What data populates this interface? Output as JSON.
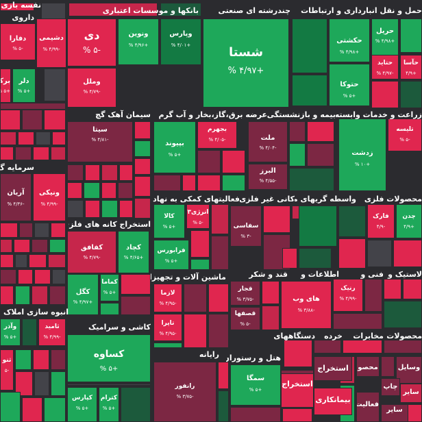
{
  "colors": {
    "strong_green": "#1ea85a",
    "green": "#137a43",
    "dark_green": "#1c5a3c",
    "strong_red": "#e0264f",
    "red": "#c6264b",
    "dark_red": "#7c2743",
    "neutral": "#434349",
    "background": "#2b2b2f"
  },
  "sectors": [
    {
      "name": "حمل و نقل انبارداری و ارتباطات"
    },
    {
      "name": "چندرشته ای صنعتی"
    },
    {
      "name": "بانکها و موسسات اعتباری"
    },
    {
      "name": "نفسه بازی"
    },
    {
      "name": "داروی"
    },
    {
      "name": "زراعت و خدمات وابسته"
    },
    {
      "name": "بیمه و بازنشستگی"
    },
    {
      "name": "عرضه برق،گاز،بخار و آب گرم"
    },
    {
      "name": "سیمان آهک گچ"
    },
    {
      "name": "سرمایه گ"
    },
    {
      "name": "محصولات فلزی"
    },
    {
      "name": "واسطه گریهای مالی"
    },
    {
      "name": "کانی غیر فلزی"
    },
    {
      "name": "فعالیتهای کمکی به نهاد"
    },
    {
      "name": "استخراج کانه های فلزی"
    },
    {
      "name": "لاستیک و"
    },
    {
      "name": "فنی و"
    },
    {
      "name": "اطلاعات و"
    },
    {
      "name": "قند و شکر"
    },
    {
      "name": "ماشین آلات و تجهیزات"
    },
    {
      "name": "انبوه سازی املاک"
    },
    {
      "name": "محصولات"
    },
    {
      "name": "مخابرات"
    },
    {
      "name": "خرده"
    },
    {
      "name": "دستگاههای"
    },
    {
      "name": "هتل و رستوران"
    },
    {
      "name": "رایانه"
    },
    {
      "name": "کاشی و سرامیک"
    }
  ],
  "tiles": [
    {
      "symbol": "شستا",
      "change": "+۴/۹۷ %"
    },
    {
      "symbol": "دی",
      "change": "-۵ %"
    },
    {
      "symbol": "ونوین",
      "change": "+۴/۹۶ %"
    },
    {
      "symbol": "وپارس",
      "change": "+۴/۰۱ %"
    },
    {
      "symbol": "وملل",
      "change": "-۴/۷۹ %"
    },
    {
      "symbol": "دشیمی",
      "change": "-۴/۹۹ %"
    },
    {
      "symbol": "دفارا",
      "change": "-۵ %"
    },
    {
      "symbol": "دلر",
      "change": "+۵ %"
    },
    {
      "symbol": "برکت",
      "change": "+۵ %"
    },
    {
      "symbol": "حکشتی",
      "change": "+۴/۹۸ %"
    },
    {
      "symbol": "حریل",
      "change": "+۴/۹۸ %"
    },
    {
      "symbol": "حتوکا",
      "change": "+۵ %"
    },
    {
      "symbol": "حتاید",
      "change": "-۴/۹۷ %"
    },
    {
      "symbol": "حآسا",
      "change": "+۴/۹"
    },
    {
      "symbol": "زدشت",
      "change": "+۱۰ %"
    },
    {
      "symbol": "تلیسه",
      "change": "-۵ %"
    },
    {
      "symbol": "ملت",
      "change": "-۴/۰۴ %"
    },
    {
      "symbol": "البرز",
      "change": "-۴/۵۵ %"
    },
    {
      "symbol": "بجهرم",
      "change": "-۴/۰۵ %"
    },
    {
      "symbol": "بپیوند",
      "change": "+۵ %"
    },
    {
      "symbol": "سیتا",
      "change": "-۴/۸۱ %"
    },
    {
      "symbol": "آریان",
      "change": "-۴/۳۶ %"
    },
    {
      "symbol": "ونیکی",
      "change": "-۴/۹۹ %"
    },
    {
      "symbol": "کچاد",
      "change": "+۴/۶۵ %"
    },
    {
      "symbol": "کفافق",
      "change": "-۴/۷۹ %"
    },
    {
      "symbol": "کگل",
      "change": "+۴/۹۷ %"
    },
    {
      "symbol": "کماما",
      "change": "+۵ %"
    },
    {
      "symbol": "کالا",
      "change": "+۵ %"
    },
    {
      "symbol": "انرژی۳",
      "change": "-۵ %"
    },
    {
      "symbol": "فرابورس",
      "change": "+۵ %"
    },
    {
      "symbol": "فارک",
      "change": "-۴/۹"
    },
    {
      "symbol": "چدن",
      "change": "+۴/۹"
    },
    {
      "symbol": "سفاسی",
      "change": "-۳ %"
    },
    {
      "symbol": "رنیک",
      "change": "-۴/۹۹ %"
    },
    {
      "symbol": "های وب",
      "change": "-۳/۸۸ %"
    },
    {
      "symbol": "قجار",
      "change": "-۳/۷۵ %"
    },
    {
      "symbol": "قصفها",
      "change": "-۵ %"
    },
    {
      "symbol": "لازما",
      "change": "-۴/۹۵ %"
    },
    {
      "symbol": "تاپرا",
      "change": "-۴/۹۵ %"
    },
    {
      "symbol": "وآذر",
      "change": "+۵ %"
    },
    {
      "symbol": "ثامید",
      "change": "-۴/۹۹ %"
    },
    {
      "symbol": "ثنو",
      "change": "-۵"
    },
    {
      "symbol": "کساوه",
      "change": "+۵ %"
    },
    {
      "symbol": "کپارس",
      "change": "+۵ %"
    },
    {
      "symbol": "کترام",
      "change": "+۵ %"
    },
    {
      "symbol": "رانفور",
      "change": "-۳/۷۵ %"
    },
    {
      "symbol": "سمگا",
      "change": "+۵ %"
    },
    {
      "symbol": "استخراج",
      "change": ""
    },
    {
      "symbol": "استخراج",
      "change": ""
    },
    {
      "symbol": "بیمانکاری",
      "change": ""
    },
    {
      "symbol": "محصو",
      "change": ""
    },
    {
      "symbol": "وسایل",
      "change": ""
    },
    {
      "symbol": "چاپ",
      "change": ""
    },
    {
      "symbol": "سایر",
      "change": ""
    },
    {
      "symbol": "فعالیت",
      "change": ""
    },
    {
      "symbol": "سایر",
      "change": ""
    },
    {
      "symbol": "استخراج",
      "change": ""
    }
  ]
}
